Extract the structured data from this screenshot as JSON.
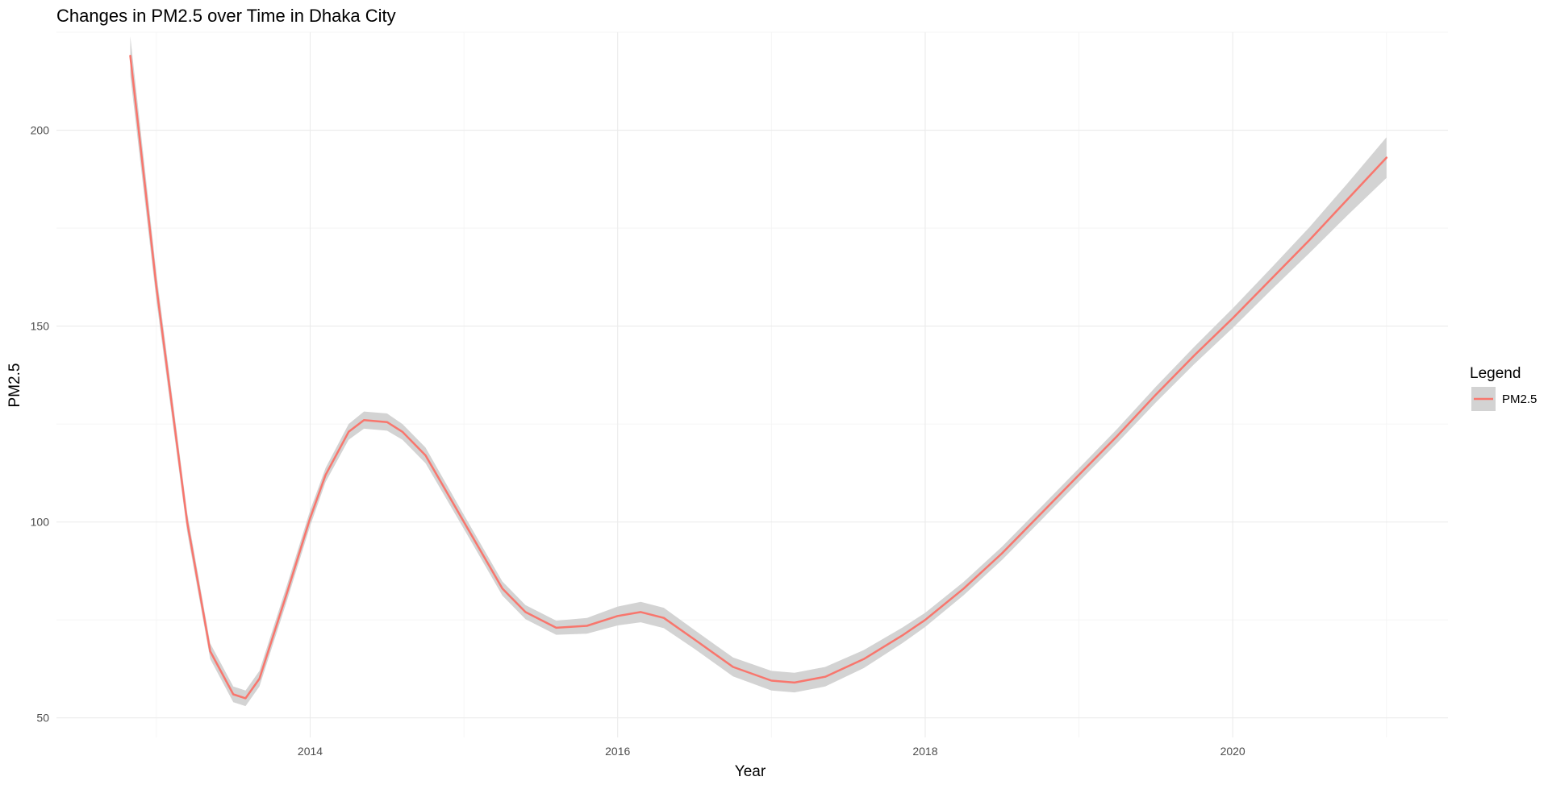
{
  "chart_data": {
    "type": "line",
    "title": "Changes in PM2.5 over Time in Dhaka City",
    "xlabel": "Year",
    "ylabel": "PM2.5",
    "xlim": [
      2012.35,
      2021.4
    ],
    "ylim": [
      45,
      225
    ],
    "x_ticks": [
      2014,
      2016,
      2018,
      2020
    ],
    "x_minor_ticks": [
      2013,
      2015,
      2017,
      2019,
      2021
    ],
    "y_ticks": [
      50,
      100,
      150,
      200
    ],
    "y_minor_ticks": [
      75,
      125,
      175,
      225
    ],
    "grid": true,
    "legend": {
      "title": "Legend",
      "position": "right",
      "entries": [
        "PM2.5"
      ]
    },
    "colors": {
      "line": "#F8766D",
      "ribbon": "#D3D3D3"
    },
    "series": [
      {
        "name": "PM2.5",
        "x": [
          2012.83,
          2013.0,
          2013.2,
          2013.35,
          2013.5,
          2013.58,
          2013.67,
          2013.85,
          2014.0,
          2014.1,
          2014.25,
          2014.35,
          2014.5,
          2014.6,
          2014.75,
          2015.0,
          2015.25,
          2015.4,
          2015.6,
          2015.8,
          2016.0,
          2016.15,
          2016.3,
          2016.5,
          2016.75,
          2017.0,
          2017.15,
          2017.35,
          2017.6,
          2017.85,
          2018.0,
          2018.25,
          2018.5,
          2018.75,
          2019.0,
          2019.25,
          2019.5,
          2019.75,
          2020.0,
          2020.25,
          2020.5,
          2020.75,
          2021.0
        ],
        "y": [
          219,
          160,
          100,
          67,
          56,
          55,
          60,
          82,
          101,
          112,
          123,
          126,
          125.5,
          123,
          117,
          100,
          83,
          77,
          73,
          73.5,
          76,
          77,
          75.5,
          70,
          63,
          59.5,
          59,
          60.5,
          65,
          71,
          75,
          83,
          92,
          102,
          112,
          122,
          132.5,
          142.5,
          152,
          162,
          172,
          182.5,
          193
        ],
        "ci_half_width": [
          5,
          3.5,
          2.5,
          2,
          2,
          2,
          2,
          2,
          2,
          1.8,
          2,
          2.2,
          2.2,
          2,
          2,
          1.8,
          1.8,
          1.8,
          1.8,
          2,
          2.4,
          2.6,
          2.6,
          2.4,
          2.4,
          2.5,
          2.5,
          2.5,
          2.3,
          2,
          1.8,
          1.7,
          1.7,
          1.7,
          1.7,
          1.8,
          2,
          2.2,
          2.5,
          2.8,
          3.3,
          4.1,
          5.2
        ]
      }
    ]
  }
}
